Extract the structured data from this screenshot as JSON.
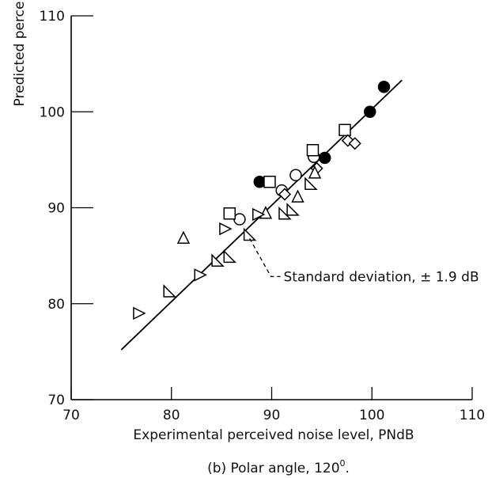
{
  "chart_data": {
    "type": "scatter",
    "xlabel": "Experimental perceived noise level,  PNdB",
    "ylabel": "Predicted perceived",
    "caption": "(b) Polar angle, 120",
    "caption_sup": "0",
    "caption_end": ".",
    "xlim": [
      70,
      110
    ],
    "ylim": [
      70,
      110
    ],
    "x_ticks": [
      70,
      80,
      90,
      100,
      110
    ],
    "y_ticks": [
      70,
      80,
      90,
      100,
      110
    ],
    "grid": false,
    "fit_line": {
      "x": [
        75,
        103
      ],
      "y": [
        75.2,
        103.3
      ]
    },
    "annotation": {
      "text": "Standard deviation,  ± 1.9 dB",
      "target": [
        87.8,
        86.8
      ],
      "label_at": [
        91.5,
        82.5
      ]
    },
    "series": [
      {
        "marker": "filled-circle",
        "x": [
          88.8,
          95.3,
          99.8,
          101.2
        ],
        "y": [
          92.7,
          95.2,
          100.0,
          102.6
        ]
      },
      {
        "marker": "open-circle",
        "x": [
          86.8,
          91.0,
          92.4,
          94.2
        ],
        "y": [
          88.8,
          91.8,
          93.4,
          95.3
        ]
      },
      {
        "marker": "open-square",
        "x": [
          89.8,
          85.8,
          94.1,
          97.3
        ],
        "y": [
          92.7,
          89.4,
          96.0,
          98.1
        ]
      },
      {
        "marker": "open-diamond",
        "x": [
          91.3,
          97.6,
          98.3,
          94.5
        ],
        "y": [
          91.4,
          97.0,
          96.7,
          94.1
        ]
      },
      {
        "marker": "triangle-up",
        "x": [
          81.2,
          89.4,
          92.6,
          94.3
        ],
        "y": [
          86.8,
          89.4,
          91.1,
          93.6
        ]
      },
      {
        "marker": "triangle-right",
        "x": [
          76.7,
          82.8,
          85.3,
          88.6
        ],
        "y": [
          79.0,
          83.0,
          87.8,
          89.3
        ]
      },
      {
        "marker": "triangle-left-down",
        "x": [
          79.8,
          84.6,
          85.8,
          87.8,
          91.3,
          92.1,
          93.9
        ],
        "y": [
          81.3,
          84.5,
          84.9,
          87.2,
          89.4,
          89.8,
          92.5
        ]
      }
    ]
  }
}
